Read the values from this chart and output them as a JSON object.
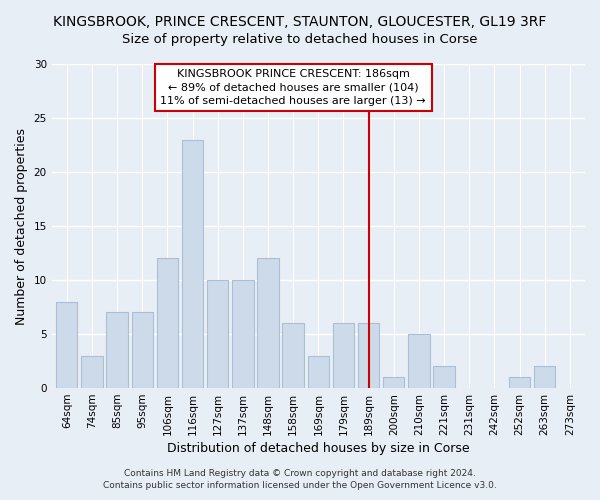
{
  "title": "KINGSBROOK, PRINCE CRESCENT, STAUNTON, GLOUCESTER, GL19 3RF",
  "subtitle": "Size of property relative to detached houses in Corse",
  "xlabel": "Distribution of detached houses by size in Corse",
  "ylabel": "Number of detached properties",
  "bar_labels": [
    "64sqm",
    "74sqm",
    "85sqm",
    "95sqm",
    "106sqm",
    "116sqm",
    "127sqm",
    "137sqm",
    "148sqm",
    "158sqm",
    "169sqm",
    "179sqm",
    "189sqm",
    "200sqm",
    "210sqm",
    "221sqm",
    "231sqm",
    "242sqm",
    "252sqm",
    "263sqm",
    "273sqm"
  ],
  "bar_values": [
    8,
    3,
    7,
    7,
    12,
    23,
    10,
    10,
    12,
    6,
    3,
    6,
    6,
    1,
    5,
    2,
    0,
    0,
    1,
    2,
    0
  ],
  "bar_color": "#ccdaea",
  "bar_edge_color": "#aabfd4",
  "reference_line_index": 12,
  "reference_line_color": "#cc0000",
  "annotation_title": "KINGSBROOK PRINCE CRESCENT: 186sqm",
  "annotation_line1": "← 89% of detached houses are smaller (104)",
  "annotation_line2": "11% of semi-detached houses are larger (13) →",
  "ylim": [
    0,
    30
  ],
  "yticks": [
    0,
    5,
    10,
    15,
    20,
    25,
    30
  ],
  "footer1": "Contains HM Land Registry data © Crown copyright and database right 2024.",
  "footer2": "Contains public sector information licensed under the Open Government Licence v3.0.",
  "background_color": "#e8eef5",
  "plot_bg_color": "#e8eef5",
  "annotation_box_color": "#ffffff",
  "title_fontsize": 10,
  "subtitle_fontsize": 9.5,
  "axis_label_fontsize": 9,
  "tick_fontsize": 7.5,
  "annotation_fontsize": 8,
  "footer_fontsize": 6.5
}
